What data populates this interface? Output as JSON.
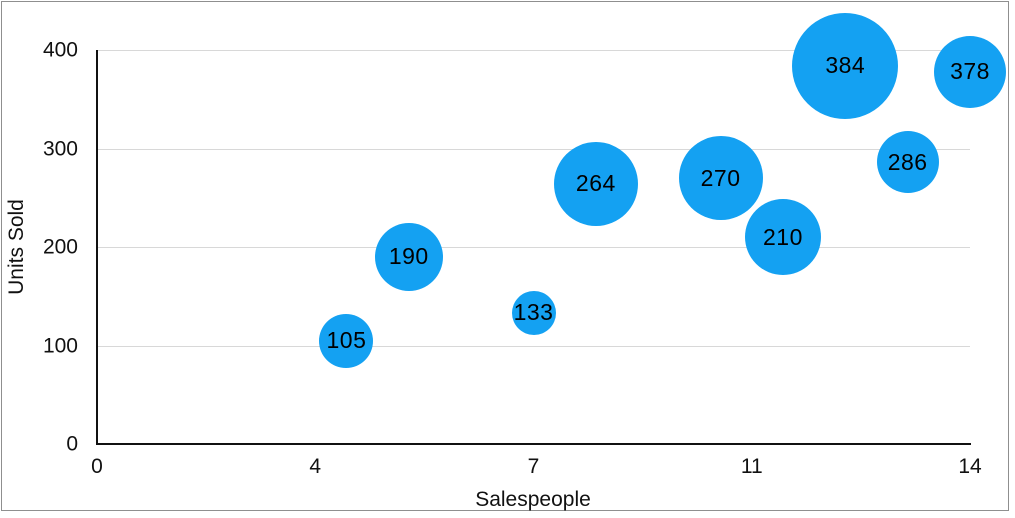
{
  "chart_data": {
    "type": "bubble",
    "title": "",
    "xlabel": "Salespeople",
    "ylabel": "Units Sold",
    "x_axis": {
      "min": 0,
      "max": 14,
      "tick_labels": [
        "0",
        "4",
        "7",
        "11",
        "14"
      ],
      "tick_values": [
        0,
        3.5,
        7,
        10.5,
        14
      ],
      "note": "ticks evenly spaced across axis; labels shown rounded to integers"
    },
    "y_axis": {
      "min": 0,
      "max": 400,
      "tick_labels": [
        "0",
        "100",
        "200",
        "300",
        "400"
      ],
      "tick_values": [
        0,
        100,
        200,
        300,
        400
      ]
    },
    "grid": "horizontal-only",
    "legend": "none",
    "points": [
      {
        "x": 4,
        "units_sold": 105,
        "label": "105",
        "radius_px": 27
      },
      {
        "x": 5,
        "units_sold": 190,
        "label": "190",
        "radius_px": 34
      },
      {
        "x": 7,
        "units_sold": 133,
        "label": "133",
        "radius_px": 22
      },
      {
        "x": 8,
        "units_sold": 264,
        "label": "264",
        "radius_px": 42
      },
      {
        "x": 10,
        "units_sold": 270,
        "label": "270",
        "radius_px": 42
      },
      {
        "x": 11,
        "units_sold": 210,
        "label": "210",
        "radius_px": 38
      },
      {
        "x": 12,
        "units_sold": 384,
        "label": "384",
        "radius_px": 53
      },
      {
        "x": 13,
        "units_sold": 286,
        "label": "286",
        "radius_px": 31
      },
      {
        "x": 14,
        "units_sold": 378,
        "label": "378",
        "radius_px": 36
      }
    ],
    "colors": {
      "bubble_fill": "#14A1F2",
      "grid_line": "#D8D8D8",
      "axis_line": "#111111",
      "label_text": "#000000",
      "figure_border": "#8F8F8F"
    }
  }
}
